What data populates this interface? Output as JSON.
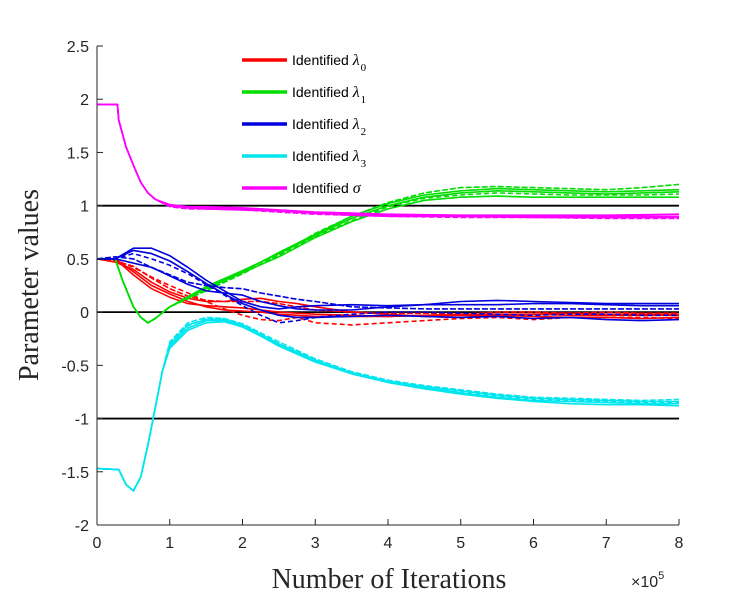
{
  "chart_data": {
    "type": "line",
    "xlabel": "Number of Iterations",
    "ylabel": "Parameter values",
    "xlim": [
      0,
      800000
    ],
    "ylim": [
      -2,
      2.5
    ],
    "x_ticks": [
      0,
      1,
      2,
      3,
      4,
      5,
      6,
      7,
      8
    ],
    "x_tick_labels": [
      "0",
      "1",
      "2",
      "3",
      "4",
      "5",
      "6",
      "7",
      "8"
    ],
    "x_multiplier": {
      "base": "×10",
      "exponent": "5"
    },
    "y_ticks": [
      -2,
      -1.5,
      -1,
      -0.5,
      0,
      0.5,
      1,
      1.5,
      2,
      2.5
    ],
    "y_tick_labels": [
      "-2",
      "-1.5",
      "-1",
      "-0.5",
      "0",
      "0.5",
      "1",
      "1.5",
      "2",
      "2.5"
    ],
    "reference_lines": [
      1,
      0,
      -1
    ],
    "reference_color": "#000000",
    "legend_position": "top-center",
    "series": [
      {
        "name": "Identified λ0",
        "label_text": "Identified ",
        "symbol": "λ",
        "subscript": "0",
        "color": "#ff0000",
        "x": [
          0,
          0.25,
          0.5,
          0.75,
          1,
          1.25,
          1.5,
          1.75,
          2,
          2.25,
          2.5,
          2.75,
          3,
          3.5,
          4,
          4.5,
          5,
          5.5,
          6,
          6.5,
          7,
          7.5,
          8
        ],
        "runs": [
          [
            0.5,
            0.5,
            0.38,
            0.25,
            0.17,
            0.1,
            0.05,
            0.02,
            0.01,
            0.0,
            -0.02,
            -0.03,
            -0.04,
            -0.04,
            -0.04,
            -0.03,
            -0.03,
            -0.03,
            -0.02,
            -0.03,
            -0.03,
            -0.03,
            -0.03
          ],
          [
            0.5,
            0.5,
            0.35,
            0.22,
            0.14,
            0.08,
            0.06,
            0.05,
            0.04,
            0.02,
            0.0,
            -0.01,
            -0.02,
            -0.03,
            -0.04,
            -0.03,
            -0.02,
            -0.02,
            -0.02,
            -0.01,
            -0.02,
            -0.02,
            -0.02
          ],
          [
            0.5,
            0.48,
            0.43,
            0.32,
            0.22,
            0.15,
            0.11,
            0.1,
            0.1,
            0.1,
            0.08,
            0.05,
            0.02,
            0.0,
            -0.01,
            -0.01,
            -0.02,
            0.0,
            0.0,
            -0.01,
            0.0,
            -0.01,
            -0.01
          ],
          [
            0.5,
            0.47,
            0.4,
            0.28,
            0.19,
            0.13,
            0.1,
            0.1,
            0.12,
            0.13,
            0.1,
            0.08,
            0.05,
            0.0,
            -0.02,
            -0.04,
            -0.05,
            -0.03,
            -0.04,
            -0.05,
            -0.05,
            -0.06,
            -0.05
          ],
          [
            0.5,
            0.49,
            0.42,
            0.33,
            0.25,
            0.18,
            0.1,
            0.03,
            -0.03,
            -0.07,
            -0.08,
            -0.05,
            -0.1,
            -0.12,
            -0.1,
            -0.08,
            -0.06,
            -0.05,
            -0.07,
            -0.05,
            -0.05,
            -0.05,
            -0.06
          ]
        ]
      },
      {
        "name": "Identified λ1",
        "label_text": "Identified ",
        "symbol": "λ",
        "subscript": "1",
        "color": "#00dd00",
        "x": [
          0,
          0.25,
          0.35,
          0.5,
          0.6,
          0.7,
          0.8,
          1,
          1.5,
          2,
          2.5,
          3,
          3.5,
          4,
          4.5,
          5,
          5.5,
          6,
          6.5,
          7,
          7.5,
          8
        ],
        "runs": [
          [
            0.5,
            0.5,
            0.3,
            0.05,
            -0.05,
            -0.1,
            -0.06,
            0.05,
            0.22,
            0.37,
            0.52,
            0.7,
            0.85,
            0.97,
            1.05,
            1.08,
            1.09,
            1.08,
            1.08,
            1.08,
            1.08,
            1.08
          ],
          [
            0.5,
            0.5,
            0.3,
            0.05,
            -0.05,
            -0.1,
            -0.06,
            0.05,
            0.24,
            0.39,
            0.55,
            0.72,
            0.88,
            1.0,
            1.08,
            1.12,
            1.14,
            1.13,
            1.12,
            1.11,
            1.12,
            1.13
          ],
          [
            0.5,
            0.5,
            0.3,
            0.05,
            -0.05,
            -0.1,
            -0.06,
            0.05,
            0.2,
            0.36,
            0.54,
            0.74,
            0.9,
            1.03,
            1.12,
            1.17,
            1.18,
            1.17,
            1.16,
            1.15,
            1.17,
            1.2
          ],
          [
            0.5,
            0.5,
            0.3,
            0.05,
            -0.05,
            -0.1,
            -0.06,
            0.05,
            0.23,
            0.38,
            0.56,
            0.73,
            0.9,
            1.02,
            1.1,
            1.14,
            1.16,
            1.15,
            1.14,
            1.13,
            1.14,
            1.15
          ],
          [
            0.5,
            0.5,
            0.3,
            0.05,
            -0.05,
            -0.1,
            -0.06,
            0.05,
            0.21,
            0.37,
            0.53,
            0.71,
            0.86,
            0.99,
            1.07,
            1.1,
            1.12,
            1.11,
            1.1,
            1.1,
            1.1,
            1.11
          ]
        ]
      },
      {
        "name": "Identified λ2",
        "label_text": "Identified ",
        "symbol": "λ",
        "subscript": "2",
        "color": "#0000dd",
        "x": [
          0,
          0.25,
          0.5,
          0.75,
          1,
          1.25,
          1.5,
          1.75,
          2,
          2.25,
          2.5,
          2.75,
          3,
          3.5,
          4,
          4.5,
          5,
          5.5,
          6,
          6.5,
          7,
          7.5,
          8
        ],
        "runs": [
          [
            0.5,
            0.5,
            0.58,
            0.55,
            0.48,
            0.38,
            0.27,
            0.17,
            0.08,
            0.02,
            -0.03,
            -0.05,
            -0.05,
            -0.04,
            -0.03,
            -0.04,
            -0.05,
            -0.04,
            -0.06,
            -0.05,
            -0.07,
            -0.08,
            -0.07
          ],
          [
            0.5,
            0.5,
            0.6,
            0.6,
            0.53,
            0.42,
            0.3,
            0.2,
            0.1,
            0.05,
            0.03,
            0.05,
            0.06,
            0.07,
            0.06,
            0.07,
            0.07,
            0.07,
            0.08,
            0.08,
            0.07,
            0.06,
            0.06
          ],
          [
            0.5,
            0.52,
            0.5,
            0.42,
            0.35,
            0.28,
            0.25,
            0.23,
            0.22,
            0.18,
            0.15,
            0.12,
            0.1,
            0.05,
            0.04,
            0.03,
            0.03,
            0.03,
            0.03,
            0.03,
            0.03,
            0.03,
            0.03
          ],
          [
            0.5,
            0.5,
            0.46,
            0.42,
            0.34,
            0.26,
            0.2,
            0.18,
            0.16,
            0.1,
            0.06,
            0.03,
            0.02,
            0.02,
            0.05,
            0.07,
            0.1,
            0.11,
            0.1,
            0.09,
            0.08,
            0.08,
            0.08
          ],
          [
            0.5,
            0.5,
            0.55,
            0.5,
            0.44,
            0.36,
            0.26,
            0.16,
            0.06,
            -0.03,
            -0.1,
            -0.08,
            -0.05,
            -0.02,
            0.0,
            0.0,
            -0.01,
            -0.02,
            -0.03,
            -0.02,
            -0.02,
            -0.03,
            -0.03
          ]
        ]
      },
      {
        "name": "Identified λ3",
        "label_text": "Identified ",
        "symbol": "λ",
        "subscript": "3",
        "color": "#00e5ee",
        "x": [
          0,
          0.3,
          0.4,
          0.5,
          0.6,
          0.7,
          0.8,
          0.9,
          1,
          1.25,
          1.5,
          1.75,
          2,
          2.5,
          3,
          3.5,
          4,
          4.5,
          5,
          5.5,
          6,
          6.5,
          7,
          7.5,
          8
        ],
        "runs": [
          [
            -1.47,
            -1.48,
            -1.62,
            -1.68,
            -1.55,
            -1.25,
            -0.9,
            -0.55,
            -0.3,
            -0.12,
            -0.07,
            -0.07,
            -0.12,
            -0.3,
            -0.45,
            -0.57,
            -0.65,
            -0.7,
            -0.74,
            -0.78,
            -0.81,
            -0.82,
            -0.83,
            -0.84,
            -0.84
          ],
          [
            -1.47,
            -1.48,
            -1.62,
            -1.68,
            -1.55,
            -1.25,
            -0.9,
            -0.55,
            -0.32,
            -0.15,
            -0.08,
            -0.08,
            -0.13,
            -0.32,
            -0.47,
            -0.58,
            -0.66,
            -0.71,
            -0.76,
            -0.8,
            -0.83,
            -0.84,
            -0.85,
            -0.86,
            -0.86
          ],
          [
            -1.47,
            -1.48,
            -1.62,
            -1.68,
            -1.55,
            -1.25,
            -0.9,
            -0.55,
            -0.28,
            -0.1,
            -0.05,
            -0.06,
            -0.11,
            -0.28,
            -0.44,
            -0.56,
            -0.64,
            -0.69,
            -0.73,
            -0.77,
            -0.8,
            -0.81,
            -0.82,
            -0.83,
            -0.82
          ],
          [
            -1.47,
            -1.48,
            -1.62,
            -1.68,
            -1.55,
            -1.25,
            -0.9,
            -0.55,
            -0.34,
            -0.17,
            -0.1,
            -0.09,
            -0.14,
            -0.31,
            -0.46,
            -0.58,
            -0.66,
            -0.72,
            -0.77,
            -0.81,
            -0.84,
            -0.86,
            -0.87,
            -0.87,
            -0.88
          ],
          [
            -1.47,
            -1.48,
            -1.62,
            -1.68,
            -1.55,
            -1.25,
            -0.9,
            -0.55,
            -0.3,
            -0.13,
            -0.06,
            -0.06,
            -0.12,
            -0.3,
            -0.46,
            -0.57,
            -0.65,
            -0.7,
            -0.75,
            -0.79,
            -0.82,
            -0.83,
            -0.84,
            -0.85,
            -0.85
          ]
        ]
      },
      {
        "name": "Identified σ",
        "label_text": "Identified ",
        "symbol": "σ",
        "subscript": "",
        "color": "#ff00ff",
        "x": [
          0,
          0.28,
          0.3,
          0.4,
          0.5,
          0.6,
          0.7,
          0.8,
          1,
          1.25,
          1.5,
          2,
          2.5,
          3,
          3.5,
          4,
          5,
          6,
          7,
          8
        ],
        "runs": [
          [
            1.95,
            1.95,
            1.8,
            1.55,
            1.38,
            1.22,
            1.12,
            1.06,
            1.0,
            0.98,
            0.98,
            0.97,
            0.95,
            0.93,
            0.92,
            0.91,
            0.9,
            0.9,
            0.9,
            0.9
          ],
          [
            1.95,
            1.95,
            1.8,
            1.55,
            1.38,
            1.22,
            1.12,
            1.06,
            1.01,
            0.99,
            0.99,
            0.98,
            0.96,
            0.94,
            0.93,
            0.92,
            0.91,
            0.91,
            0.91,
            0.92
          ],
          [
            1.95,
            1.95,
            1.8,
            1.55,
            1.38,
            1.22,
            1.12,
            1.06,
            0.99,
            0.97,
            0.97,
            0.96,
            0.94,
            0.92,
            0.91,
            0.9,
            0.89,
            0.89,
            0.88,
            0.88
          ],
          [
            1.95,
            1.95,
            1.8,
            1.55,
            1.38,
            1.22,
            1.12,
            1.06,
            1.0,
            0.98,
            0.97,
            0.96,
            0.95,
            0.93,
            0.91,
            0.9,
            0.9,
            0.89,
            0.89,
            0.89
          ],
          [
            1.95,
            1.95,
            1.8,
            1.55,
            1.38,
            1.22,
            1.12,
            1.06,
            1.0,
            0.98,
            0.98,
            0.97,
            0.95,
            0.93,
            0.92,
            0.91,
            0.9,
            0.9,
            0.9,
            0.9
          ]
        ]
      }
    ]
  }
}
